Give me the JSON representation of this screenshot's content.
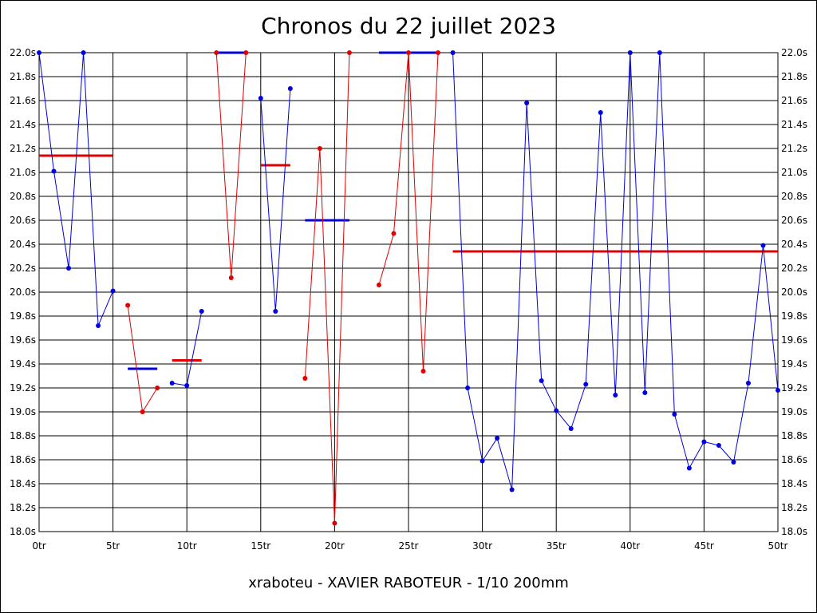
{
  "chart_data": {
    "type": "line",
    "title": "Chronos du 22 juillet 2023",
    "footer": "xraboteu - XAVIER RABOTEUR - 1/10 200mm",
    "xlim": [
      0,
      50
    ],
    "ylim": [
      18.0,
      22.0
    ],
    "x_tick_labels": [
      "0tr",
      "5tr",
      "10tr",
      "15tr",
      "20tr",
      "25tr",
      "30tr",
      "35tr",
      "40tr",
      "45tr",
      "50tr"
    ],
    "y_tick_labels": [
      "18.0s",
      "18.2s",
      "18.4s",
      "18.6s",
      "18.8s",
      "19.0s",
      "19.2s",
      "19.4s",
      "19.6s",
      "19.8s",
      "20.0s",
      "20.2s",
      "20.4s",
      "20.6s",
      "20.8s",
      "21.0s",
      "21.2s",
      "21.4s",
      "21.6s",
      "21.8s",
      "22.0s"
    ],
    "grid": true,
    "colors": {
      "blue": "#0000e0",
      "red": "#e00000",
      "grid": "#000000"
    },
    "series": [
      {
        "color": "blue",
        "points": [
          [
            0,
            22.0
          ],
          [
            1,
            21.01
          ],
          [
            2,
            20.2
          ],
          [
            3,
            22.0
          ],
          [
            4,
            19.72
          ],
          [
            5,
            20.01
          ]
        ]
      },
      {
        "color": "red",
        "points": [
          [
            6,
            19.89
          ],
          [
            7,
            19.0
          ],
          [
            8,
            19.2
          ]
        ]
      },
      {
        "color": "blue",
        "points": [
          [
            9,
            19.24
          ],
          [
            10,
            19.22
          ],
          [
            11,
            19.84
          ]
        ]
      },
      {
        "color": "red",
        "points": [
          [
            12,
            22.0
          ],
          [
            13,
            20.12
          ],
          [
            14,
            22.0
          ]
        ]
      },
      {
        "color": "blue",
        "points": [
          [
            15,
            21.62
          ],
          [
            16,
            19.84
          ],
          [
            17,
            21.7
          ]
        ]
      },
      {
        "color": "red",
        "points": [
          [
            18,
            19.28
          ],
          [
            19,
            21.2
          ],
          [
            20,
            18.07
          ],
          [
            21,
            22.0
          ]
        ]
      },
      {
        "color": "red",
        "points": [
          [
            23,
            20.06
          ],
          [
            24,
            20.49
          ],
          [
            25,
            22.0
          ],
          [
            26,
            19.34
          ],
          [
            27,
            22.0
          ]
        ]
      },
      {
        "color": "blue",
        "points": [
          [
            28,
            22.0
          ],
          [
            29,
            19.2
          ],
          [
            30,
            18.59
          ],
          [
            31,
            18.78
          ],
          [
            32,
            18.35
          ],
          [
            33,
            21.58
          ],
          [
            34,
            19.26
          ],
          [
            35,
            19.01
          ],
          [
            36,
            18.86
          ],
          [
            37,
            19.23
          ],
          [
            38,
            21.5
          ],
          [
            39,
            19.14
          ],
          [
            40,
            22.0
          ],
          [
            41,
            19.16
          ],
          [
            42,
            22.0
          ],
          [
            43,
            18.98
          ],
          [
            44,
            18.53
          ],
          [
            45,
            18.75
          ],
          [
            46,
            18.72
          ],
          [
            47,
            18.58
          ],
          [
            48,
            19.24
          ],
          [
            49,
            20.39
          ],
          [
            50,
            19.18
          ]
        ]
      }
    ],
    "average_lines": [
      {
        "color": "red",
        "x_start": 0,
        "x_end": 5,
        "value": 21.14
      },
      {
        "color": "blue",
        "x_start": 6,
        "x_end": 8,
        "value": 19.36
      },
      {
        "color": "red",
        "x_start": 9,
        "x_end": 11,
        "value": 19.43
      },
      {
        "color": "blue",
        "x_start": 12,
        "x_end": 14,
        "value": 22.0
      },
      {
        "color": "red",
        "x_start": 15,
        "x_end": 17,
        "value": 21.06
      },
      {
        "color": "blue",
        "x_start": 18,
        "x_end": 21,
        "value": 20.6
      },
      {
        "color": "blue",
        "x_start": 23,
        "x_end": 27,
        "value": 22.0
      },
      {
        "color": "red",
        "x_start": 28,
        "x_end": 50,
        "value": 20.34
      }
    ]
  }
}
